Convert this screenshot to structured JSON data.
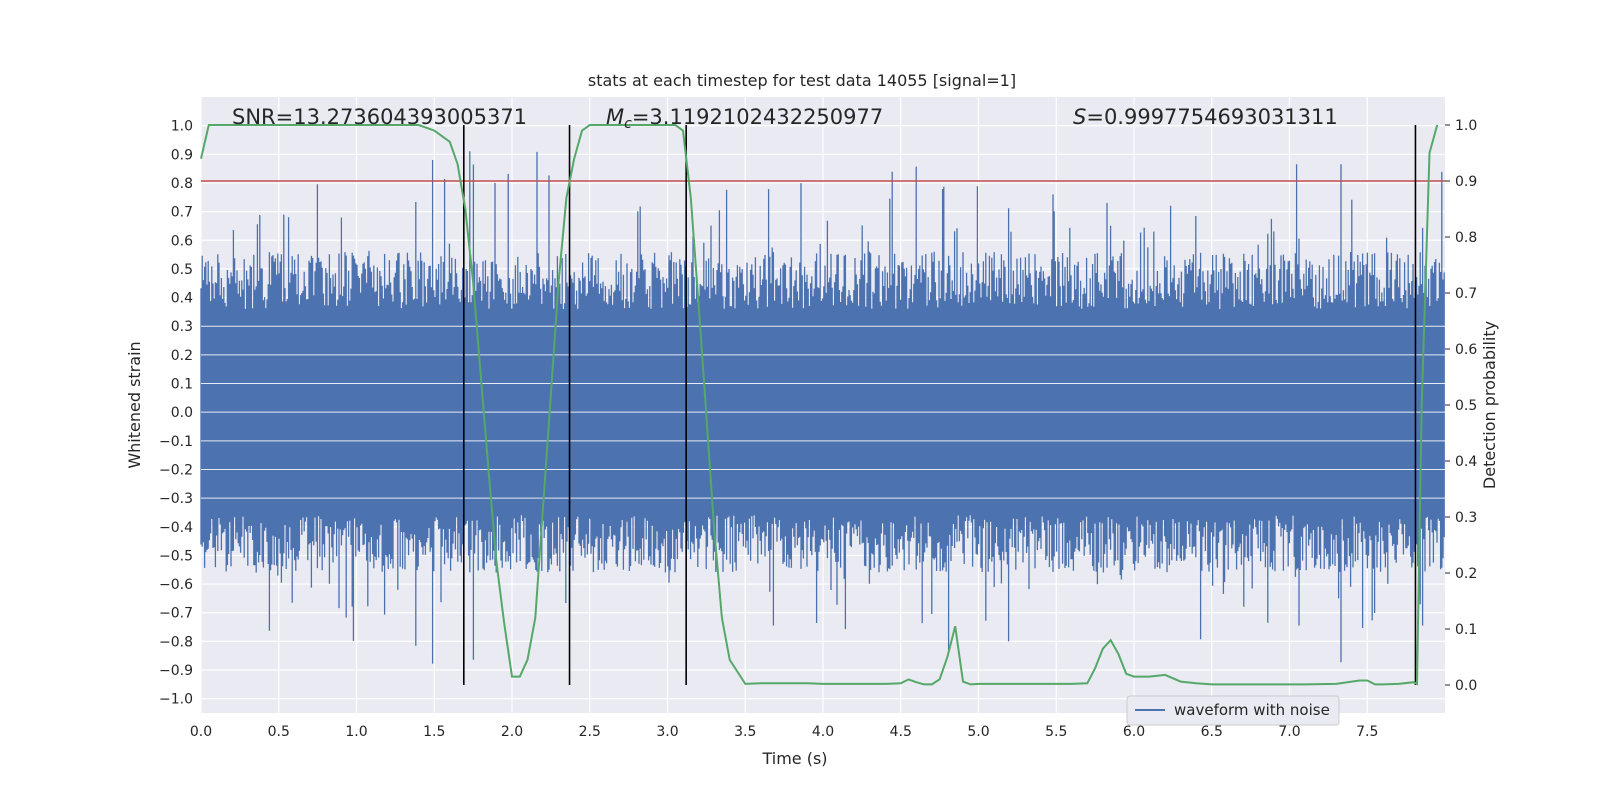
{
  "chart_data": {
    "type": "line",
    "title": "stats at each timestep for test data 14055 [signal=1]",
    "xlabel": "Time (s)",
    "ylabel": "Whitened strain",
    "ylabel_right": "Detection probability",
    "xlim": [
      0.0,
      8.0
    ],
    "ylim": [
      -1.05,
      1.1
    ],
    "ylim_right": [
      -0.05,
      1.05
    ],
    "x_ticks": [
      0.0,
      0.5,
      1.0,
      1.5,
      2.0,
      2.5,
      3.0,
      3.5,
      4.0,
      4.5,
      5.0,
      5.5,
      6.0,
      6.5,
      7.0,
      7.5
    ],
    "x_tick_labels": [
      "0.0",
      "0.5",
      "1.0",
      "1.5",
      "2.0",
      "2.5",
      "3.0",
      "3.5",
      "4.0",
      "4.5",
      "5.0",
      "5.5",
      "6.0",
      "6.5",
      "7.0",
      "7.5"
    ],
    "y_ticks": [
      1.0,
      0.9,
      0.8,
      0.7,
      0.6,
      0.5,
      0.4,
      0.3,
      0.2,
      0.1,
      0.0,
      -0.1,
      -0.2,
      -0.3,
      -0.4,
      -0.5,
      -0.6,
      -0.7,
      -0.8,
      -0.9,
      -1.0
    ],
    "y_tick_labels": [
      "1.0",
      "0.9",
      "0.8",
      "0.7",
      "0.6",
      "0.5",
      "0.4",
      "0.3",
      "0.2",
      "0.1",
      "0.0",
      "−0.1",
      "−0.2",
      "−0.3",
      "−0.4",
      "−0.5",
      "−0.6",
      "−0.7",
      "−0.8",
      "−0.9",
      "−1.0"
    ],
    "y_right_ticks": [
      1.0,
      0.9,
      0.8,
      0.7,
      0.6,
      0.5,
      0.4,
      0.3,
      0.2,
      0.1,
      0.0
    ],
    "y_right_tick_labels": [
      "1.0",
      "0.9",
      "0.8",
      "0.7",
      "0.6",
      "0.5",
      "0.4",
      "0.3",
      "0.2",
      "0.1",
      "0.0"
    ],
    "annotations": {
      "snr": "SNR=13.273604393005371",
      "mc_symbol": "M",
      "mc_sub": "c",
      "mc_value": "=3.1192102432250977",
      "s_symbol": "S",
      "s_value": "=0.9997754693031311"
    },
    "series": [
      {
        "name": "waveform with noise",
        "color": "#4c72b0",
        "axis": "left",
        "description": "whitened strain time series, noise amplitude roughly ±0.4 with spikes to ±0.95"
      },
      {
        "name": "detection probability",
        "color": "#55a868",
        "axis": "right",
        "x": [
          0.0,
          0.05,
          0.2,
          0.4,
          0.6,
          0.8,
          1.0,
          1.2,
          1.4,
          1.5,
          1.6,
          1.65,
          1.7,
          1.75,
          1.8,
          1.85,
          1.9,
          1.95,
          2.0,
          2.05,
          2.1,
          2.15,
          2.2,
          2.25,
          2.3,
          2.35,
          2.4,
          2.45,
          2.5,
          2.55,
          2.6,
          2.8,
          3.0,
          3.05,
          3.1,
          3.15,
          3.2,
          3.25,
          3.3,
          3.35,
          3.4,
          3.5,
          3.6,
          3.7,
          3.8,
          3.9,
          4.0,
          4.2,
          4.4,
          4.5,
          4.55,
          4.6,
          4.65,
          4.7,
          4.75,
          4.8,
          4.85,
          4.9,
          4.95,
          5.0,
          5.1,
          5.2,
          5.3,
          5.4,
          5.5,
          5.6,
          5.7,
          5.75,
          5.8,
          5.85,
          5.9,
          5.95,
          6.0,
          6.1,
          6.2,
          6.3,
          6.4,
          6.5,
          6.7,
          6.9,
          7.1,
          7.3,
          7.45,
          7.5,
          7.55,
          7.6,
          7.7,
          7.8,
          7.82,
          7.85,
          7.9,
          7.95
        ],
        "y": [
          0.94,
          1.0,
          1.0,
          1.0,
          1.0,
          1.0,
          1.0,
          1.0,
          1.0,
          0.99,
          0.97,
          0.93,
          0.85,
          0.72,
          0.55,
          0.38,
          0.22,
          0.11,
          0.015,
          0.015,
          0.045,
          0.12,
          0.32,
          0.52,
          0.72,
          0.87,
          0.94,
          0.99,
          1.0,
          1.0,
          1.0,
          1.0,
          1.0,
          1.0,
          0.99,
          0.87,
          0.68,
          0.48,
          0.28,
          0.12,
          0.045,
          0.002,
          0.003,
          0.003,
          0.003,
          0.003,
          0.002,
          0.002,
          0.002,
          0.003,
          0.01,
          0.005,
          0.001,
          0.001,
          0.01,
          0.05,
          0.105,
          0.006,
          0.001,
          0.002,
          0.002,
          0.002,
          0.002,
          0.002,
          0.002,
          0.002,
          0.003,
          0.03,
          0.065,
          0.08,
          0.055,
          0.02,
          0.015,
          0.015,
          0.018,
          0.006,
          0.003,
          0.001,
          0.001,
          0.001,
          0.001,
          0.002,
          0.008,
          0.008,
          0.001,
          0.001,
          0.002,
          0.005,
          0.002,
          0.5,
          0.95,
          1.0
        ]
      }
    ],
    "threshold_line": {
      "value_right_axis": 0.9,
      "color": "#c44e52"
    },
    "vertical_markers_x": [
      1.69,
      2.37,
      3.12,
      7.81
    ],
    "legend": {
      "label": "waveform with noise",
      "placement": "lower-right"
    },
    "grid": true,
    "background": "#eaeaf2"
  }
}
